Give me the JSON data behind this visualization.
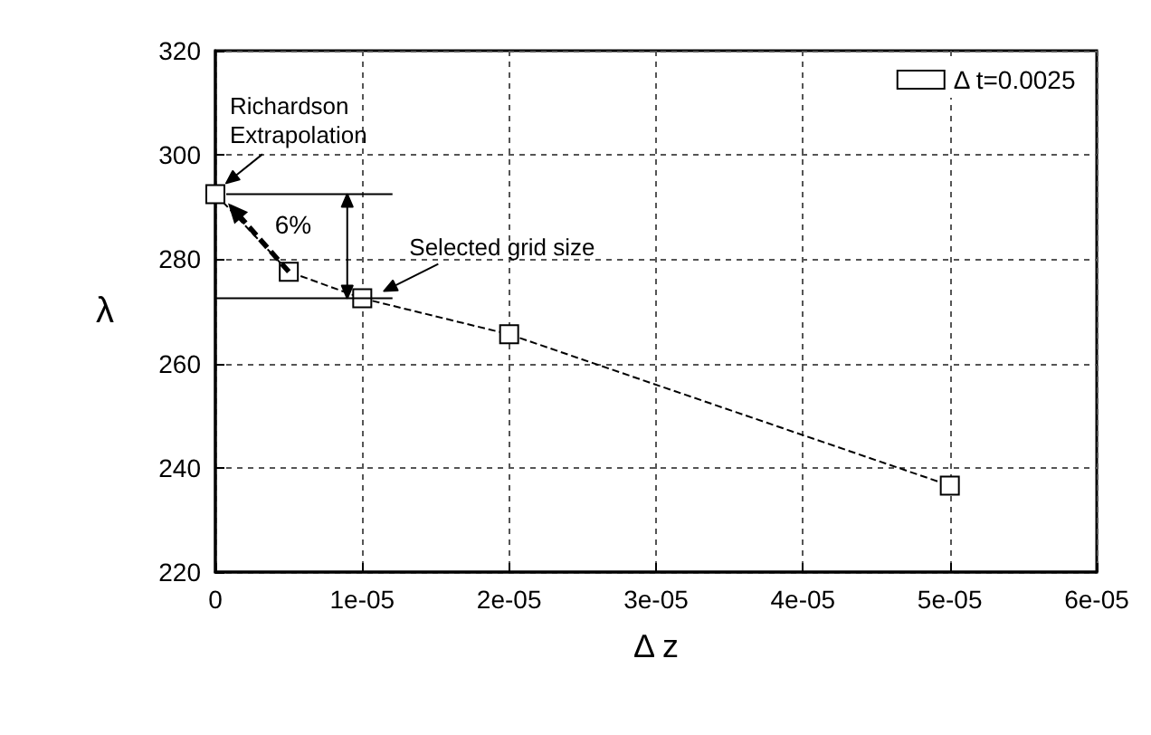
{
  "chart_data": {
    "type": "line",
    "xlabel": "Δ z",
    "ylabel": "λ",
    "x": [
      0,
      5e-06,
      1e-05,
      2e-05,
      5e-05
    ],
    "series": [
      {
        "name": "Δ t=0.0025",
        "color": "#000000",
        "values": [
          292.5,
          277.6,
          272.5,
          265.6,
          236.6
        ]
      }
    ],
    "xlim": [
      0,
      6e-05
    ],
    "xticks": [
      0,
      {
        "value": 1e-05,
        "label": "1e-05"
      },
      {
        "value": 2e-05,
        "label": "2e-05"
      },
      {
        "value": 3e-05,
        "label": "3e-05"
      },
      {
        "value": 4e-05,
        "label": "4e-05"
      },
      {
        "value": 5e-05,
        "label": "5e-05"
      },
      {
        "value": 6e-05,
        "label": "6e-05"
      }
    ],
    "ylim": [
      220,
      320
    ],
    "yticks": [
      220,
      240,
      260,
      280,
      300,
      320
    ],
    "grid": true,
    "legend": "top right",
    "marker": "square",
    "line_style": "dashed",
    "annotations": [
      {
        "text": "Richardson\nExtrapolation",
        "x": 0,
        "y": 292.5
      },
      {
        "text": "Selected grid size",
        "x": 1e-05,
        "y": 272.5
      },
      "6%"
    ]
  }
}
